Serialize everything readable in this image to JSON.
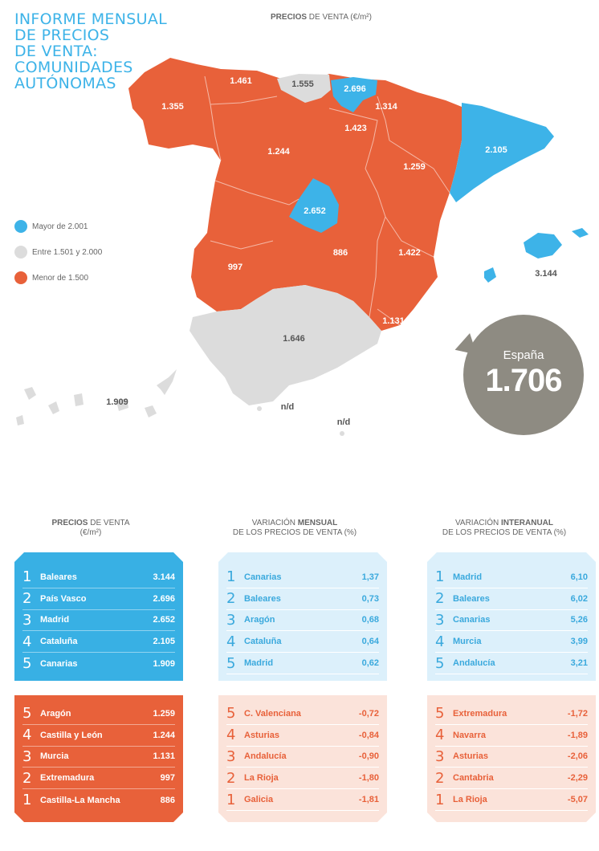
{
  "title": [
    "INFORME MENSUAL",
    "DE PRECIOS",
    "DE VENTA:",
    "COMUNIDADES",
    "AUTÓNOMAS"
  ],
  "map_header": {
    "bold": "PRECIOS",
    "rest": " DE VENTA (€/m²)"
  },
  "legend": [
    {
      "label": "Mayor de 2.001",
      "color": "#3db3e8"
    },
    {
      "label": "Entre 1.501 y 2.000",
      "color": "#dcdcdc"
    },
    {
      "label": "Menor de 1.500",
      "color": "#e8613a"
    }
  ],
  "map_labels": {
    "galicia": "1.355",
    "asturias": "1.461",
    "cantabria": "1.555",
    "pais_vasco": "2.696",
    "navarra": "1.314",
    "la_rioja": "1.423",
    "castilla_leon": "1.244",
    "aragon": "1.259",
    "cataluna": "2.105",
    "madrid": "2.652",
    "extremadura": "997",
    "castilla_la_mancha": "886",
    "c_valenciana": "1.422",
    "murcia": "1.131",
    "andalucia": "1.646",
    "baleares": "3.144",
    "canarias": "1.909",
    "ceuta": "n/d",
    "melilla": "n/d"
  },
  "colors": {
    "blue": "#3db3e8",
    "orange": "#e8613a",
    "grey": "#dcdcdc",
    "badge": "#8e8b82"
  },
  "spain": {
    "name": "España",
    "value": "1.706"
  },
  "tables": [
    {
      "header_bold": "PRECIOS",
      "header_rest": " DE VENTA",
      "header_line2": "(€/m²)",
      "top": [
        {
          "rank": "1",
          "name": "Baleares",
          "value": "3.144"
        },
        {
          "rank": "2",
          "name": "País Vasco",
          "value": "2.696"
        },
        {
          "rank": "3",
          "name": "Madrid",
          "value": "2.652"
        },
        {
          "rank": "4",
          "name": "Cataluña",
          "value": "2.105"
        },
        {
          "rank": "5",
          "name": "Canarias",
          "value": "1.909"
        }
      ],
      "bottom": [
        {
          "rank": "5",
          "name": "Aragón",
          "value": "1.259"
        },
        {
          "rank": "4",
          "name": "Castilla y León",
          "value": "1.244"
        },
        {
          "rank": "3",
          "name": "Murcia",
          "value": "1.131"
        },
        {
          "rank": "2",
          "name": "Extremadura",
          "value": "997"
        },
        {
          "rank": "1",
          "name": "Castilla-La Mancha",
          "value": "886"
        }
      ]
    },
    {
      "header_pre": "VARIACIÓN ",
      "header_bold": "MENSUAL",
      "header_line2": "DE LOS PRECIOS DE VENTA (%)",
      "top": [
        {
          "rank": "1",
          "name": "Canarias",
          "value": "1,37"
        },
        {
          "rank": "2",
          "name": "Baleares",
          "value": "0,73"
        },
        {
          "rank": "3",
          "name": "Aragón",
          "value": "0,68"
        },
        {
          "rank": "4",
          "name": "Cataluña",
          "value": "0,64"
        },
        {
          "rank": "5",
          "name": "Madrid",
          "value": "0,62"
        }
      ],
      "bottom": [
        {
          "rank": "5",
          "name": "C. Valenciana",
          "value": "-0,72"
        },
        {
          "rank": "4",
          "name": "Asturias",
          "value": "-0,84"
        },
        {
          "rank": "3",
          "name": "Andalucía",
          "value": "-0,90"
        },
        {
          "rank": "2",
          "name": "La Rioja",
          "value": "-1,80"
        },
        {
          "rank": "1",
          "name": "Galicia",
          "value": "-1,81"
        }
      ]
    },
    {
      "header_pre": "VARIACIÓN ",
      "header_bold": "INTERANUAL",
      "header_line2": "DE LOS PRECIOS DE VENTA (%)",
      "top": [
        {
          "rank": "1",
          "name": "Madrid",
          "value": "6,10"
        },
        {
          "rank": "2",
          "name": "Baleares",
          "value": "6,02"
        },
        {
          "rank": "3",
          "name": "Canarias",
          "value": "5,26"
        },
        {
          "rank": "4",
          "name": "Murcia",
          "value": "3,99"
        },
        {
          "rank": "5",
          "name": "Andalucía",
          "value": "3,21"
        }
      ],
      "bottom": [
        {
          "rank": "5",
          "name": "Extremadura",
          "value": "-1,72"
        },
        {
          "rank": "4",
          "name": "Navarra",
          "value": "-1,89"
        },
        {
          "rank": "3",
          "name": "Asturias",
          "value": "-2,06"
        },
        {
          "rank": "2",
          "name": "Cantabria",
          "value": "-2,29"
        },
        {
          "rank": "1",
          "name": "La Rioja",
          "value": "-5,07"
        }
      ]
    }
  ]
}
